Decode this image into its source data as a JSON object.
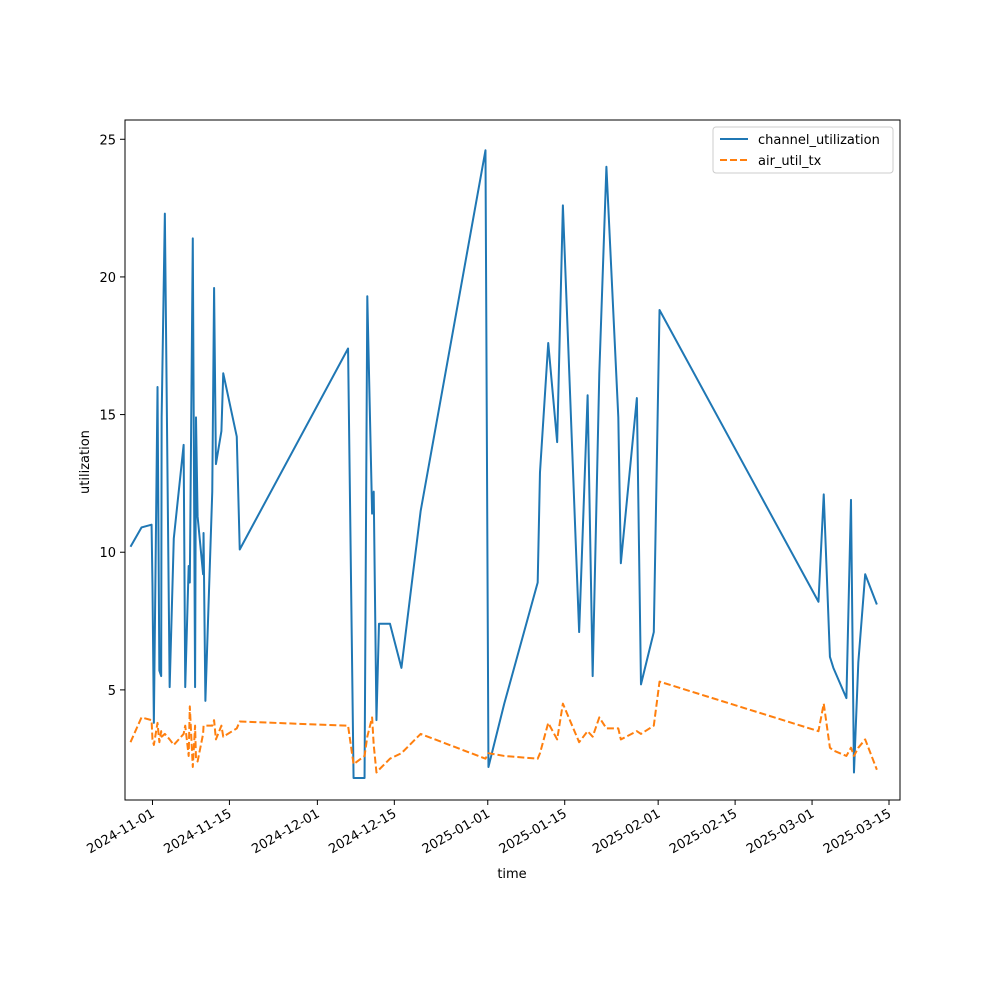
{
  "chart_data": {
    "type": "line",
    "title": "",
    "xlabel": "time",
    "ylabel": "utilization",
    "x_axis": {
      "type": "date",
      "range": [
        "2024-10-27",
        "2025-03-17"
      ],
      "ticks": [
        "2024-11-01",
        "2024-11-15",
        "2024-12-01",
        "2024-12-15",
        "2025-01-01",
        "2025-01-15",
        "2025-02-01",
        "2025-02-15",
        "2025-03-01",
        "2025-03-15"
      ]
    },
    "y_axis": {
      "range": [
        1.0,
        25.7
      ],
      "ticks": [
        5,
        10,
        15,
        20,
        25
      ]
    },
    "grid": false,
    "legend": {
      "placement": "top-right"
    },
    "series": [
      {
        "name": "channel_utilization",
        "color": "#1f77b4",
        "style": "solid",
        "points": [
          [
            "2024-10-28T00:00",
            10.2
          ],
          [
            "2024-10-30T00:00",
            10.9
          ],
          [
            "2024-10-31T20:00",
            11.0
          ],
          [
            "2024-11-01T00:00",
            8.8
          ],
          [
            "2024-11-01T06:00",
            3.8
          ],
          [
            "2024-11-01T22:00",
            16.0
          ],
          [
            "2024-11-02T06:00",
            5.7
          ],
          [
            "2024-11-02T14:00",
            5.5
          ],
          [
            "2024-11-02T16:00",
            14.9
          ],
          [
            "2024-11-03T06:00",
            22.3
          ],
          [
            "2024-11-04T03:00",
            5.1
          ],
          [
            "2024-11-04T21:00",
            10.5
          ],
          [
            "2024-11-06T16:00",
            13.9
          ],
          [
            "2024-11-06T23:00",
            5.1
          ],
          [
            "2024-11-07T14:00",
            9.5
          ],
          [
            "2024-11-07T19:00",
            8.9
          ],
          [
            "2024-11-08T08:00",
            21.4
          ],
          [
            "2024-11-08T18:00",
            5.1
          ],
          [
            "2024-11-08T22:00",
            14.9
          ],
          [
            "2024-11-09T05:00",
            11.3
          ],
          [
            "2024-11-10T05:00",
            9.2
          ],
          [
            "2024-11-10T07:00",
            10.7
          ],
          [
            "2024-11-10T15:00",
            4.6
          ],
          [
            "2024-11-11T21:00",
            12.2
          ],
          [
            "2024-11-12T05:00",
            19.6
          ],
          [
            "2024-11-12T13:00",
            13.2
          ],
          [
            "2024-11-13T13:00",
            14.4
          ],
          [
            "2024-11-13T21:00",
            16.5
          ],
          [
            "2024-11-16T08:00",
            14.2
          ],
          [
            "2024-11-16T21:00",
            10.1
          ],
          [
            "2024-12-06T14:00",
            17.4
          ],
          [
            "2024-12-07T14:00",
            1.8
          ],
          [
            "2024-12-09T14:00",
            1.8
          ],
          [
            "2024-12-10T02:00",
            19.3
          ],
          [
            "2024-12-10T23:00",
            11.4
          ],
          [
            "2024-12-11T06:00",
            12.2
          ],
          [
            "2024-12-11T18:00",
            3.9
          ],
          [
            "2024-12-12T05:00",
            7.4
          ],
          [
            "2024-12-14T05:00",
            7.4
          ],
          [
            "2024-12-16T07:00",
            5.8
          ],
          [
            "2024-12-19T19:00",
            11.5
          ],
          [
            "2024-12-31T14:00",
            24.6
          ],
          [
            "2025-01-01T03:00",
            2.2
          ],
          [
            "2025-01-04T00:00",
            4.5
          ],
          [
            "2025-01-10T02:00",
            8.9
          ],
          [
            "2025-01-10T12:00",
            12.9
          ],
          [
            "2025-01-12T00:00",
            17.6
          ],
          [
            "2025-01-13T15:00",
            14.0
          ],
          [
            "2025-01-14T16:00",
            22.6
          ],
          [
            "2025-01-17T15:00",
            7.1
          ],
          [
            "2025-01-19T04:00",
            15.7
          ],
          [
            "2025-01-20T02:00",
            5.5
          ],
          [
            "2025-01-21T07:00",
            16.5
          ],
          [
            "2025-01-22T14:00",
            24.0
          ],
          [
            "2025-01-24T18:00",
            14.9
          ],
          [
            "2025-01-25T05:00",
            9.6
          ],
          [
            "2025-01-28T03:00",
            15.6
          ],
          [
            "2025-01-28T21:00",
            5.2
          ],
          [
            "2025-01-31T05:00",
            7.1
          ],
          [
            "2025-02-01T06:00",
            18.8
          ],
          [
            "2025-03-02T04:00",
            8.2
          ],
          [
            "2025-03-03T03:00",
            12.1
          ],
          [
            "2025-03-04T06:00",
            6.2
          ],
          [
            "2025-03-04T21:00",
            5.8
          ],
          [
            "2025-03-07T06:00",
            4.7
          ],
          [
            "2025-03-08T02:00",
            11.9
          ],
          [
            "2025-03-08T15:00",
            2.0
          ],
          [
            "2025-03-09T10:00",
            6.0
          ],
          [
            "2025-03-10T16:00",
            9.2
          ],
          [
            "2025-03-12T19:00",
            8.1
          ]
        ]
      },
      {
        "name": "air_util_tx",
        "color": "#ff7f0e",
        "style": "dashed",
        "points": [
          [
            "2024-10-28T00:00",
            3.1
          ],
          [
            "2024-10-30T00:00",
            4.0
          ],
          [
            "2024-10-31T20:00",
            3.9
          ],
          [
            "2024-11-01T00:00",
            3.2
          ],
          [
            "2024-11-01T06:00",
            3.0
          ],
          [
            "2024-11-01T22:00",
            3.8
          ],
          [
            "2024-11-02T06:00",
            3.1
          ],
          [
            "2024-11-02T14:00",
            3.5
          ],
          [
            "2024-11-02T16:00",
            3.3
          ],
          [
            "2024-11-03T06:00",
            3.4
          ],
          [
            "2024-11-04T03:00",
            3.2
          ],
          [
            "2024-11-04T21:00",
            3.0
          ],
          [
            "2024-11-06T16:00",
            3.4
          ],
          [
            "2024-11-06T23:00",
            3.7
          ],
          [
            "2024-11-07T14:00",
            2.6
          ],
          [
            "2024-11-07T19:00",
            4.4
          ],
          [
            "2024-11-08T08:00",
            2.2
          ],
          [
            "2024-11-08T18:00",
            3.7
          ],
          [
            "2024-11-08T22:00",
            2.5
          ],
          [
            "2024-11-09T05:00",
            2.4
          ],
          [
            "2024-11-10T05:00",
            3.4
          ],
          [
            "2024-11-10T07:00",
            3.7
          ],
          [
            "2024-11-10T15:00",
            3.7
          ],
          [
            "2024-11-11T21:00",
            3.7
          ],
          [
            "2024-11-12T05:00",
            3.9
          ],
          [
            "2024-11-12T13:00",
            3.2
          ],
          [
            "2024-11-13T13:00",
            3.7
          ],
          [
            "2024-11-13T21:00",
            3.3
          ],
          [
            "2024-11-16T08:00",
            3.6
          ],
          [
            "2024-11-16T21:00",
            3.85
          ],
          [
            "2024-12-06T14:00",
            3.7
          ],
          [
            "2024-12-07T14:00",
            2.3
          ],
          [
            "2024-12-09T14:00",
            2.6
          ],
          [
            "2024-12-10T02:00",
            3.3
          ],
          [
            "2024-12-10T23:00",
            4.0
          ],
          [
            "2024-12-11T06:00",
            3.0
          ],
          [
            "2024-12-11T18:00",
            2.0
          ],
          [
            "2024-12-12T05:00",
            2.1
          ],
          [
            "2024-12-14T05:00",
            2.5
          ],
          [
            "2024-12-16T07:00",
            2.7
          ],
          [
            "2024-12-19T19:00",
            3.4
          ],
          [
            "2024-12-31T14:00",
            2.5
          ],
          [
            "2025-01-01T03:00",
            2.7
          ],
          [
            "2025-01-04T00:00",
            2.6
          ],
          [
            "2025-01-10T02:00",
            2.5
          ],
          [
            "2025-01-10T12:00",
            2.7
          ],
          [
            "2025-01-12T00:00",
            3.8
          ],
          [
            "2025-01-13T15:00",
            3.2
          ],
          [
            "2025-01-14T16:00",
            4.5
          ],
          [
            "2025-01-17T15:00",
            3.1
          ],
          [
            "2025-01-19T04:00",
            3.5
          ],
          [
            "2025-01-20T02:00",
            3.3
          ],
          [
            "2025-01-21T07:00",
            4.0
          ],
          [
            "2025-01-22T14:00",
            3.6
          ],
          [
            "2025-01-24T18:00",
            3.6
          ],
          [
            "2025-01-25T05:00",
            3.2
          ],
          [
            "2025-01-28T03:00",
            3.5
          ],
          [
            "2025-01-28T21:00",
            3.4
          ],
          [
            "2025-01-31T05:00",
            3.7
          ],
          [
            "2025-02-01T06:00",
            5.3
          ],
          [
            "2025-03-02T04:00",
            3.5
          ],
          [
            "2025-03-03T03:00",
            4.5
          ],
          [
            "2025-03-04T06:00",
            2.9
          ],
          [
            "2025-03-04T21:00",
            2.8
          ],
          [
            "2025-03-07T06:00",
            2.6
          ],
          [
            "2025-03-08T02:00",
            2.9
          ],
          [
            "2025-03-08T15:00",
            2.6
          ],
          [
            "2025-03-09T10:00",
            2.9
          ],
          [
            "2025-03-10T16:00",
            3.2
          ],
          [
            "2025-03-12T19:00",
            2.1
          ]
        ]
      }
    ]
  }
}
